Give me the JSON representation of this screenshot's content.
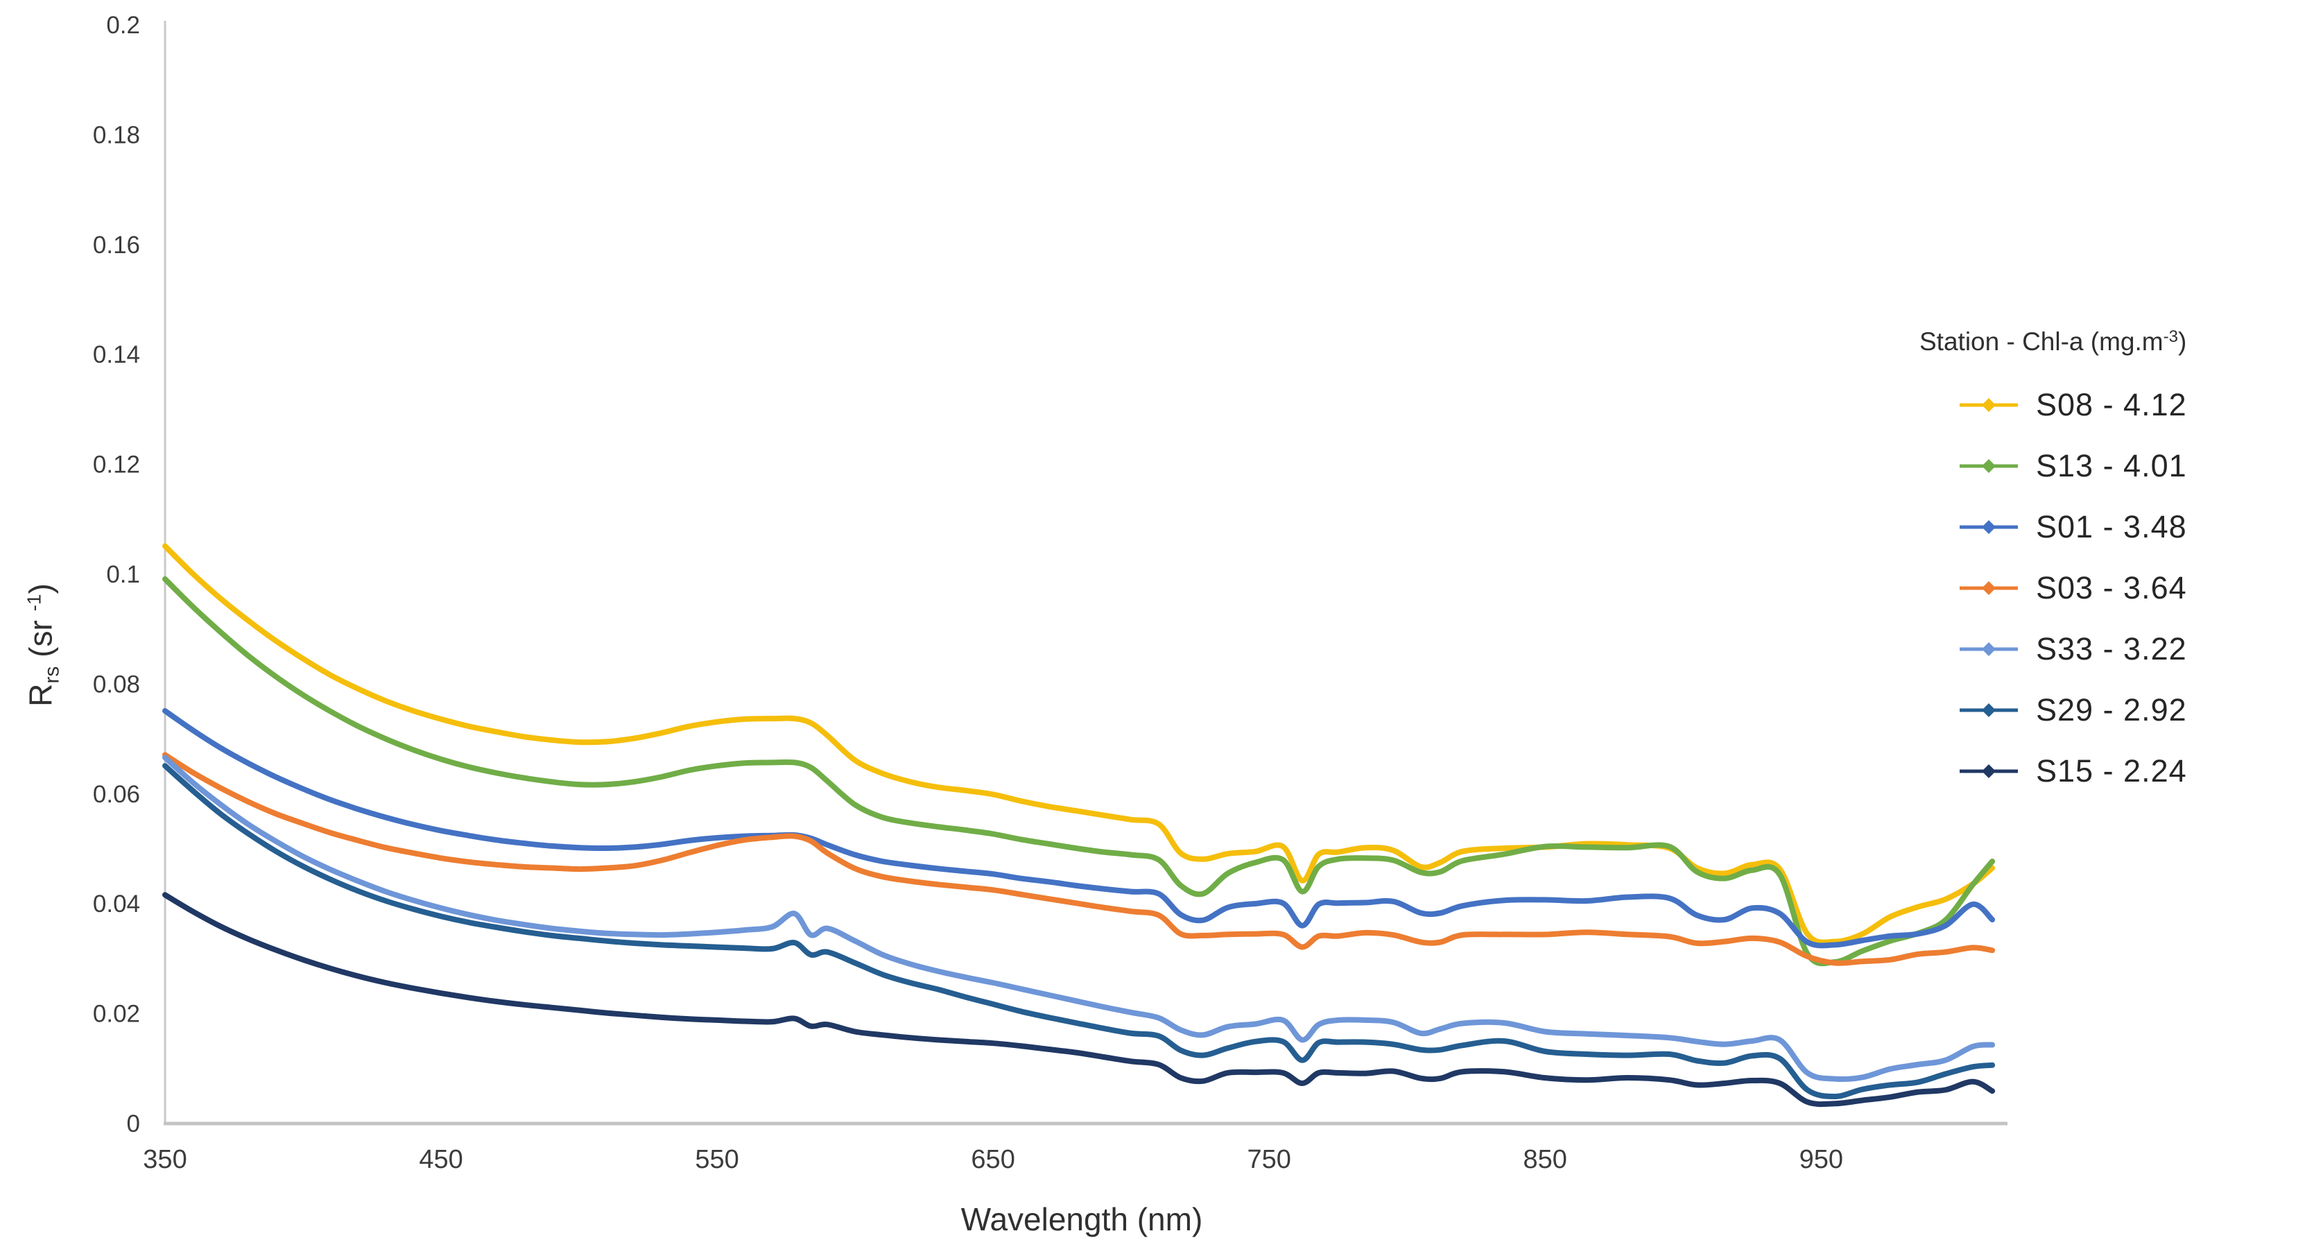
{
  "axes": {
    "x_title": "Wavelength (nm)",
    "y_title": {
      "base": "R",
      "sub": "rs",
      "mid": " (sr ",
      "sup": "-1",
      "end": ")"
    },
    "x_ticks": [
      "350",
      "450",
      "550",
      "650",
      "750",
      "850",
      "950"
    ],
    "y_ticks": [
      "0",
      "0.02",
      "0.04",
      "0.06",
      "0.08",
      "0.1",
      "0.12",
      "0.14",
      "0.16",
      "0.18",
      "0.2"
    ]
  },
  "legend": {
    "title": {
      "base": "Station - Chl-a (mg.m",
      "sup": "-3",
      "end": ")"
    }
  },
  "chart_data": {
    "type": "line",
    "xlabel": "Wavelength (nm)",
    "ylabel": "Rrs (sr-1)",
    "xlim": [
      350,
      1015
    ],
    "ylim": [
      0,
      0.2
    ],
    "x_tick_values": [
      350,
      450,
      550,
      650,
      750,
      850,
      950
    ],
    "y_tick_values": [
      0,
      0.02,
      0.04,
      0.06,
      0.08,
      0.1,
      0.12,
      0.14,
      0.16,
      0.18,
      0.2
    ],
    "grid": false,
    "legend_position": "right",
    "legend_title": "Station - Chl-a (mg.m-3)",
    "x": [
      350,
      360,
      370,
      380,
      390,
      400,
      410,
      420,
      430,
      440,
      450,
      460,
      470,
      480,
      490,
      500,
      510,
      520,
      530,
      540,
      550,
      560,
      570,
      578,
      584,
      590,
      600,
      610,
      620,
      630,
      640,
      650,
      660,
      670,
      680,
      690,
      700,
      710,
      718,
      726,
      735,
      745,
      755,
      762,
      768,
      775,
      785,
      795,
      805,
      812,
      820,
      835,
      850,
      865,
      880,
      895,
      905,
      915,
      925,
      935,
      945,
      955,
      965,
      975,
      985,
      995,
      1005,
      1012
    ],
    "series": [
      {
        "name": "S08 - 4.12",
        "station": "S08",
        "chl_a": 4.12,
        "color": "#F5BE0B",
        "values": [
          0.105,
          0.1,
          0.0955,
          0.0915,
          0.0878,
          0.0845,
          0.0815,
          0.079,
          0.0768,
          0.075,
          0.0735,
          0.0722,
          0.0712,
          0.0703,
          0.0697,
          0.0693,
          0.0694,
          0.07,
          0.071,
          0.0722,
          0.073,
          0.0735,
          0.0736,
          0.0736,
          0.0728,
          0.0705,
          0.066,
          0.0636,
          0.0621,
          0.0611,
          0.0605,
          0.0598,
          0.0586,
          0.0576,
          0.0568,
          0.056,
          0.0552,
          0.0545,
          0.0494,
          0.0478,
          0.049,
          0.0496,
          0.05,
          0.044,
          0.049,
          0.0496,
          0.0499,
          0.0496,
          0.0468,
          0.0471,
          0.0493,
          0.0501,
          0.0505,
          0.0506,
          0.0506,
          0.0502,
          0.0461,
          0.0453,
          0.0471,
          0.0465,
          0.0342,
          0.033,
          0.0346,
          0.0372,
          0.0392,
          0.0408,
          0.0438,
          0.0462
        ]
      },
      {
        "name": "S13 - 4.01",
        "station": "S13",
        "chl_a": 4.01,
        "color": "#70AD47",
        "values": [
          0.099,
          0.094,
          0.0894,
          0.0851,
          0.0813,
          0.0779,
          0.0749,
          0.0722,
          0.0699,
          0.0679,
          0.0662,
          0.0648,
          0.0637,
          0.0628,
          0.0621,
          0.0616,
          0.0616,
          0.0621,
          0.063,
          0.0642,
          0.065,
          0.0655,
          0.0656,
          0.0656,
          0.0647,
          0.0622,
          0.0579,
          0.0556,
          0.0546,
          0.0539,
          0.0533,
          0.0526,
          0.0516,
          0.0508,
          0.05,
          0.0493,
          0.0488,
          0.0482,
          0.043,
          0.0417,
          0.0456,
          0.0471,
          0.0478,
          0.0422,
          0.047,
          0.0478,
          0.0482,
          0.048,
          0.0453,
          0.0456,
          0.0478,
          0.0492,
          0.0501,
          0.0502,
          0.0503,
          0.05,
          0.0456,
          0.0446,
          0.0463,
          0.045,
          0.0308,
          0.0295,
          0.031,
          0.033,
          0.0346,
          0.0372,
          0.0432,
          0.0476
        ]
      },
      {
        "name": "S01 - 3.48",
        "station": "S01",
        "chl_a": 3.48,
        "color": "#4472C4",
        "values": [
          0.075,
          0.0715,
          0.0683,
          0.0655,
          0.063,
          0.0608,
          0.0588,
          0.0571,
          0.0556,
          0.0543,
          0.0532,
          0.0523,
          0.0515,
          0.0509,
          0.0504,
          0.0501,
          0.05,
          0.0502,
          0.0507,
          0.0514,
          0.0519,
          0.0522,
          0.0523,
          0.0524,
          0.0518,
          0.0506,
          0.0488,
          0.0476,
          0.0469,
          0.0463,
          0.0458,
          0.0453,
          0.0445,
          0.0439,
          0.0432,
          0.0426,
          0.0421,
          0.0415,
          0.0379,
          0.0371,
          0.0389,
          0.0398,
          0.0401,
          0.0362,
          0.0396,
          0.04,
          0.0403,
          0.04,
          0.0381,
          0.0383,
          0.0398,
          0.0403,
          0.0406,
          0.0406,
          0.0408,
          0.0408,
          0.0379,
          0.0373,
          0.0389,
          0.0381,
          0.0331,
          0.0321,
          0.0331,
          0.0341,
          0.0347,
          0.0357,
          0.0398,
          0.0372
        ]
      },
      {
        "name": "S03 - 3.64",
        "station": "S03",
        "chl_a": 3.64,
        "color": "#ED7D31",
        "values": [
          0.067,
          0.0638,
          0.061,
          0.0585,
          0.0563,
          0.0545,
          0.0528,
          0.0514,
          0.0501,
          0.0491,
          0.0482,
          0.0475,
          0.047,
          0.0466,
          0.0464,
          0.0462,
          0.0464,
          0.0468,
          0.0478,
          0.0492,
          0.0505,
          0.0515,
          0.052,
          0.0522,
          0.0513,
          0.0491,
          0.0463,
          0.0448,
          0.044,
          0.0434,
          0.0429,
          0.0424,
          0.0416,
          0.0408,
          0.04,
          0.0392,
          0.0385,
          0.0378,
          0.0346,
          0.0338,
          0.0342,
          0.0345,
          0.0346,
          0.0318,
          0.034,
          0.0342,
          0.0343,
          0.0341,
          0.033,
          0.0332,
          0.034,
          0.0343,
          0.0345,
          0.0344,
          0.0342,
          0.034,
          0.033,
          0.0328,
          0.0336,
          0.0331,
          0.03,
          0.029,
          0.0295,
          0.03,
          0.0305,
          0.0311,
          0.0321,
          0.0311
        ]
      },
      {
        "name": "S33 - 3.22",
        "station": "S33",
        "chl_a": 3.22,
        "color": "#6E96D8",
        "values": [
          0.0665,
          0.062,
          0.058,
          0.0544,
          0.0513,
          0.0485,
          0.0461,
          0.044,
          0.0421,
          0.0405,
          0.0391,
          0.0379,
          0.0369,
          0.0361,
          0.0354,
          0.0349,
          0.0345,
          0.0343,
          0.0342,
          0.0344,
          0.0347,
          0.0351,
          0.0357,
          0.0381,
          0.0342,
          0.0354,
          0.0331,
          0.0306,
          0.0289,
          0.0276,
          0.0265,
          0.0255,
          0.0244,
          0.0233,
          0.0222,
          0.0211,
          0.0201,
          0.0193,
          0.0166,
          0.0159,
          0.0176,
          0.0183,
          0.0185,
          0.0151,
          0.0181,
          0.0184,
          0.0186,
          0.0184,
          0.0166,
          0.0169,
          0.0181,
          0.0184,
          0.0163,
          0.0161,
          0.016,
          0.0158,
          0.0146,
          0.0143,
          0.0151,
          0.0148,
          0.009,
          0.0081,
          0.0086,
          0.0096,
          0.0106,
          0.0116,
          0.0136,
          0.0141
        ]
      },
      {
        "name": "S29 - 2.92",
        "station": "S29",
        "chl_a": 2.92,
        "color": "#255E91",
        "values": [
          0.065,
          0.0605,
          0.0563,
          0.0527,
          0.0495,
          0.0467,
          0.0443,
          0.0422,
          0.0404,
          0.0389,
          0.0376,
          0.0365,
          0.0356,
          0.0348,
          0.0341,
          0.0336,
          0.0331,
          0.0327,
          0.0324,
          0.0322,
          0.032,
          0.0318,
          0.0317,
          0.0328,
          0.0306,
          0.0311,
          0.0291,
          0.027,
          0.0255,
          0.0243,
          0.0229,
          0.0216,
          0.0203,
          0.0192,
          0.0182,
          0.0172,
          0.0163,
          0.0155,
          0.0131,
          0.0124,
          0.0139,
          0.0146,
          0.0148,
          0.0116,
          0.0143,
          0.0146,
          0.0148,
          0.0146,
          0.0131,
          0.0133,
          0.0143,
          0.0146,
          0.0129,
          0.0126,
          0.0126,
          0.0123,
          0.0113,
          0.0111,
          0.0119,
          0.0116,
          0.0061,
          0.0051,
          0.0059,
          0.0069,
          0.0076,
          0.0086,
          0.0101,
          0.0106
        ]
      },
      {
        "name": "S15 - 2.24",
        "station": "S15",
        "chl_a": 2.24,
        "color": "#203864",
        "values": [
          0.0415,
          0.0385,
          0.0358,
          0.0335,
          0.0315,
          0.0297,
          0.0281,
          0.0267,
          0.0255,
          0.0245,
          0.0236,
          0.0228,
          0.0221,
          0.0215,
          0.021,
          0.0205,
          0.02,
          0.0196,
          0.0192,
          0.0189,
          0.0187,
          0.0185,
          0.0184,
          0.019,
          0.0176,
          0.0179,
          0.0166,
          0.016,
          0.0155,
          0.0151,
          0.0148,
          0.0145,
          0.014,
          0.0134,
          0.0128,
          0.012,
          0.0112,
          0.0105,
          0.0083,
          0.0079,
          0.0089,
          0.0092,
          0.0093,
          0.0069,
          0.009,
          0.0092,
          0.0093,
          0.0092,
          0.0081,
          0.0083,
          0.009,
          0.0092,
          0.0083,
          0.0081,
          0.008,
          0.0078,
          0.0071,
          0.0069,
          0.0076,
          0.0073,
          0.0041,
          0.0033,
          0.0041,
          0.0049,
          0.0053,
          0.0059,
          0.0076,
          0.0061
        ]
      }
    ]
  }
}
